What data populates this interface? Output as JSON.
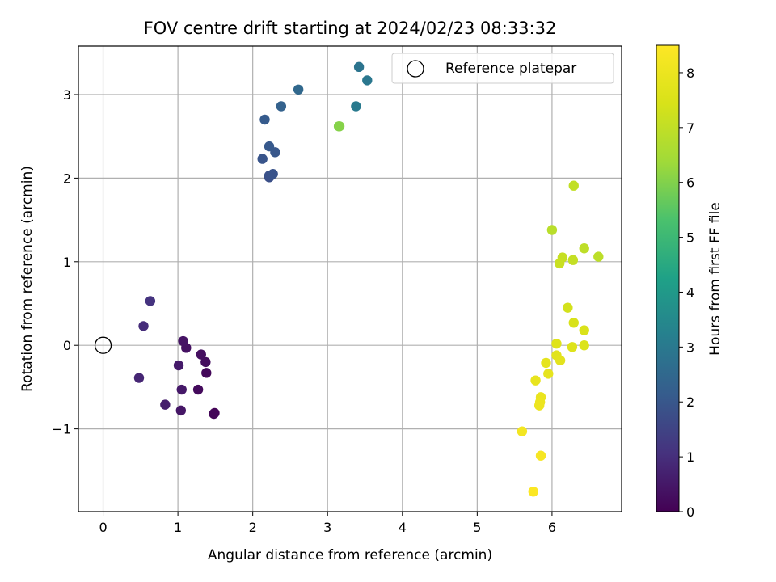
{
  "chart_data": {
    "type": "scatter",
    "title": "FOV centre drift starting at 2024/02/23 08:33:32",
    "xlabel": "Angular distance from reference (arcmin)",
    "ylabel": "Rotation from reference (arcmin)",
    "xlim": [
      -0.33,
      6.93
    ],
    "ylim": [
      -1.99,
      3.58
    ],
    "xticks": [
      0,
      1,
      2,
      3,
      4,
      5,
      6
    ],
    "yticks": [
      -1,
      0,
      1,
      2,
      3
    ],
    "grid": true,
    "legend": {
      "position": "top-right",
      "entries": [
        "Reference platepar"
      ]
    },
    "reference_point": {
      "x": 0,
      "y": 0,
      "label": "Reference platepar"
    },
    "colorbar": {
      "label": "Hours from first FF file",
      "min": 0,
      "max": 8.5,
      "ticks": [
        0,
        1,
        2,
        3,
        4,
        5,
        6,
        7,
        8
      ],
      "colormap": "viridis"
    },
    "points": [
      {
        "x": 1.49,
        "y": -0.81,
        "c": 0.05
      },
      {
        "x": 1.48,
        "y": -0.82,
        "c": 0.1
      },
      {
        "x": 1.38,
        "y": -0.33,
        "c": 0.15
      },
      {
        "x": 1.27,
        "y": -0.53,
        "c": 0.2
      },
      {
        "x": 1.37,
        "y": -0.2,
        "c": 0.25
      },
      {
        "x": 1.31,
        "y": -0.11,
        "c": 0.3
      },
      {
        "x": 1.11,
        "y": -0.03,
        "c": 0.35
      },
      {
        "x": 1.07,
        "y": 0.05,
        "c": 0.4
      },
      {
        "x": 1.04,
        "y": -0.78,
        "c": 0.45
      },
      {
        "x": 1.05,
        "y": -0.53,
        "c": 0.5
      },
      {
        "x": 1.01,
        "y": -0.24,
        "c": 0.55
      },
      {
        "x": 0.83,
        "y": -0.71,
        "c": 0.6
      },
      {
        "x": 0.48,
        "y": -0.39,
        "c": 0.8
      },
      {
        "x": 0.54,
        "y": 0.23,
        "c": 0.95
      },
      {
        "x": 0.63,
        "y": 0.53,
        "c": 1.1
      },
      {
        "x": 2.22,
        "y": 2.01,
        "c": 1.8
      },
      {
        "x": 2.22,
        "y": 2.03,
        "c": 1.85
      },
      {
        "x": 2.27,
        "y": 2.05,
        "c": 1.9
      },
      {
        "x": 2.13,
        "y": 2.23,
        "c": 1.95
      },
      {
        "x": 2.3,
        "y": 2.31,
        "c": 2.0
      },
      {
        "x": 2.22,
        "y": 2.38,
        "c": 2.05
      },
      {
        "x": 2.16,
        "y": 2.7,
        "c": 2.1
      },
      {
        "x": 2.38,
        "y": 2.86,
        "c": 2.3
      },
      {
        "x": 2.61,
        "y": 3.06,
        "c": 2.5
      },
      {
        "x": 3.42,
        "y": 3.33,
        "c": 2.85
      },
      {
        "x": 3.53,
        "y": 3.17,
        "c": 2.95
      },
      {
        "x": 3.38,
        "y": 2.86,
        "c": 3.05
      },
      {
        "x": 3.15,
        "y": 2.62,
        "c": 6.0
      },
      {
        "x": 3.16,
        "y": 2.62,
        "c": 6.05
      },
      {
        "x": 6.0,
        "y": 1.38,
        "c": 6.85
      },
      {
        "x": 6.62,
        "y": 1.06,
        "c": 6.9
      },
      {
        "x": 6.43,
        "y": 1.16,
        "c": 6.95
      },
      {
        "x": 6.29,
        "y": 1.91,
        "c": 7.0
      },
      {
        "x": 6.28,
        "y": 1.02,
        "c": 7.05
      },
      {
        "x": 6.14,
        "y": 1.05,
        "c": 7.1
      },
      {
        "x": 6.1,
        "y": 0.98,
        "c": 7.15
      },
      {
        "x": 6.21,
        "y": 0.45,
        "c": 7.35
      },
      {
        "x": 6.29,
        "y": 0.27,
        "c": 7.45
      },
      {
        "x": 6.43,
        "y": 0.18,
        "c": 7.5
      },
      {
        "x": 6.43,
        "y": 0.0,
        "c": 7.55
      },
      {
        "x": 6.27,
        "y": -0.02,
        "c": 7.6
      },
      {
        "x": 6.06,
        "y": 0.02,
        "c": 7.65
      },
      {
        "x": 6.06,
        "y": -0.12,
        "c": 7.7
      },
      {
        "x": 6.11,
        "y": -0.18,
        "c": 7.75
      },
      {
        "x": 5.92,
        "y": -0.21,
        "c": 7.8
      },
      {
        "x": 5.95,
        "y": -0.34,
        "c": 7.85
      },
      {
        "x": 5.78,
        "y": -0.42,
        "c": 7.9
      },
      {
        "x": 5.85,
        "y": -0.62,
        "c": 7.95
      },
      {
        "x": 5.84,
        "y": -0.68,
        "c": 8.0
      },
      {
        "x": 5.83,
        "y": -0.72,
        "c": 8.05
      },
      {
        "x": 5.6,
        "y": -1.03,
        "c": 8.2
      },
      {
        "x": 5.85,
        "y": -1.32,
        "c": 8.3
      },
      {
        "x": 5.75,
        "y": -1.75,
        "c": 8.45
      }
    ]
  }
}
